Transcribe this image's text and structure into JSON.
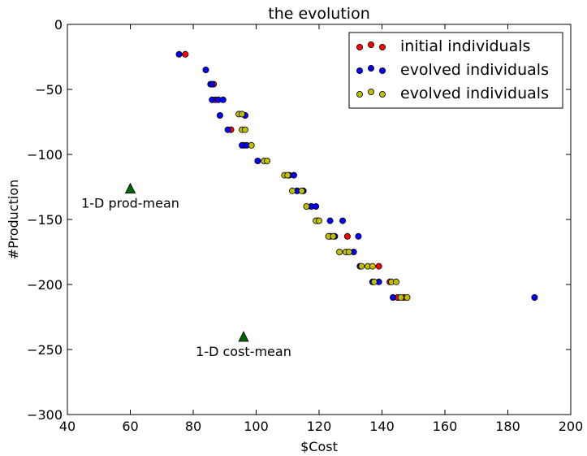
{
  "chart_data": {
    "type": "scatter",
    "title": "the evolution",
    "xlabel": "$Cost",
    "ylabel": "#Production",
    "xlim": [
      40,
      200
    ],
    "ylim": [
      -300,
      0
    ],
    "xticks": [
      40,
      60,
      80,
      100,
      120,
      140,
      160,
      180,
      200
    ],
    "yticks": [
      0,
      -50,
      -100,
      -150,
      -200,
      -250,
      -300
    ],
    "grid": false,
    "legend_location": "top-right",
    "series": [
      {
        "name": "initial individuals",
        "color": "#ff0000",
        "marker": "circle",
        "points": [
          [
            77.5,
            -23
          ],
          [
            86.5,
            -46
          ],
          [
            87,
            -58
          ],
          [
            92,
            -81
          ],
          [
            96,
            -93
          ],
          [
            113,
            -128
          ],
          [
            119.5,
            -151
          ],
          [
            129,
            -163
          ],
          [
            139,
            -186
          ],
          [
            145,
            -210
          ],
          [
            147,
            -210
          ],
          [
            142.5,
            -198
          ]
        ]
      },
      {
        "name": "evolved individuals",
        "color": "#0000ff",
        "marker": "circle",
        "points": [
          [
            75.5,
            -23
          ],
          [
            84,
            -35
          ],
          [
            85.5,
            -46
          ],
          [
            86,
            -46
          ],
          [
            86,
            -58
          ],
          [
            88,
            -58
          ],
          [
            89.5,
            -58
          ],
          [
            88.5,
            -70
          ],
          [
            96.5,
            -70
          ],
          [
            91,
            -81
          ],
          [
            95.5,
            -93
          ],
          [
            97,
            -93
          ],
          [
            100.5,
            -105
          ],
          [
            110.5,
            -116
          ],
          [
            112,
            -116
          ],
          [
            113,
            -128
          ],
          [
            115,
            -128
          ],
          [
            117.5,
            -140
          ],
          [
            119,
            -140
          ],
          [
            123.5,
            -151
          ],
          [
            127.5,
            -151
          ],
          [
            123.5,
            -163
          ],
          [
            125,
            -163
          ],
          [
            132.5,
            -163
          ],
          [
            131,
            -175
          ],
          [
            133,
            -186
          ],
          [
            137,
            -198
          ],
          [
            139,
            -198
          ],
          [
            143.5,
            -210
          ],
          [
            188.5,
            -210
          ]
        ]
      },
      {
        "name": "evolved individuals",
        "color": "#bfbf00",
        "marker": "circle",
        "points": [
          [
            94.5,
            -69
          ],
          [
            95.5,
            -69
          ],
          [
            95.5,
            -81
          ],
          [
            96.5,
            -81
          ],
          [
            98.5,
            -93
          ],
          [
            102.5,
            -105
          ],
          [
            103.5,
            -105
          ],
          [
            109,
            -116
          ],
          [
            110,
            -116
          ],
          [
            111.5,
            -128
          ],
          [
            114.5,
            -128
          ],
          [
            116,
            -140
          ],
          [
            119,
            -151
          ],
          [
            120,
            -151
          ],
          [
            123,
            -163
          ],
          [
            124.5,
            -163
          ],
          [
            126.5,
            -175
          ],
          [
            128.5,
            -175
          ],
          [
            129.5,
            -175
          ],
          [
            133.5,
            -186
          ],
          [
            135.5,
            -186
          ],
          [
            137,
            -186
          ],
          [
            137.5,
            -198
          ],
          [
            143,
            -198
          ],
          [
            144.5,
            -198
          ],
          [
            146,
            -210
          ],
          [
            148,
            -210
          ]
        ]
      }
    ],
    "annotations": [
      {
        "text": "1-D prod-mean",
        "x": 60,
        "y": -126,
        "marker": "triangle",
        "color": "#006400"
      },
      {
        "text": "1-D cost-mean",
        "x": 96,
        "y": -240,
        "marker": "triangle",
        "color": "#006400"
      }
    ]
  }
}
